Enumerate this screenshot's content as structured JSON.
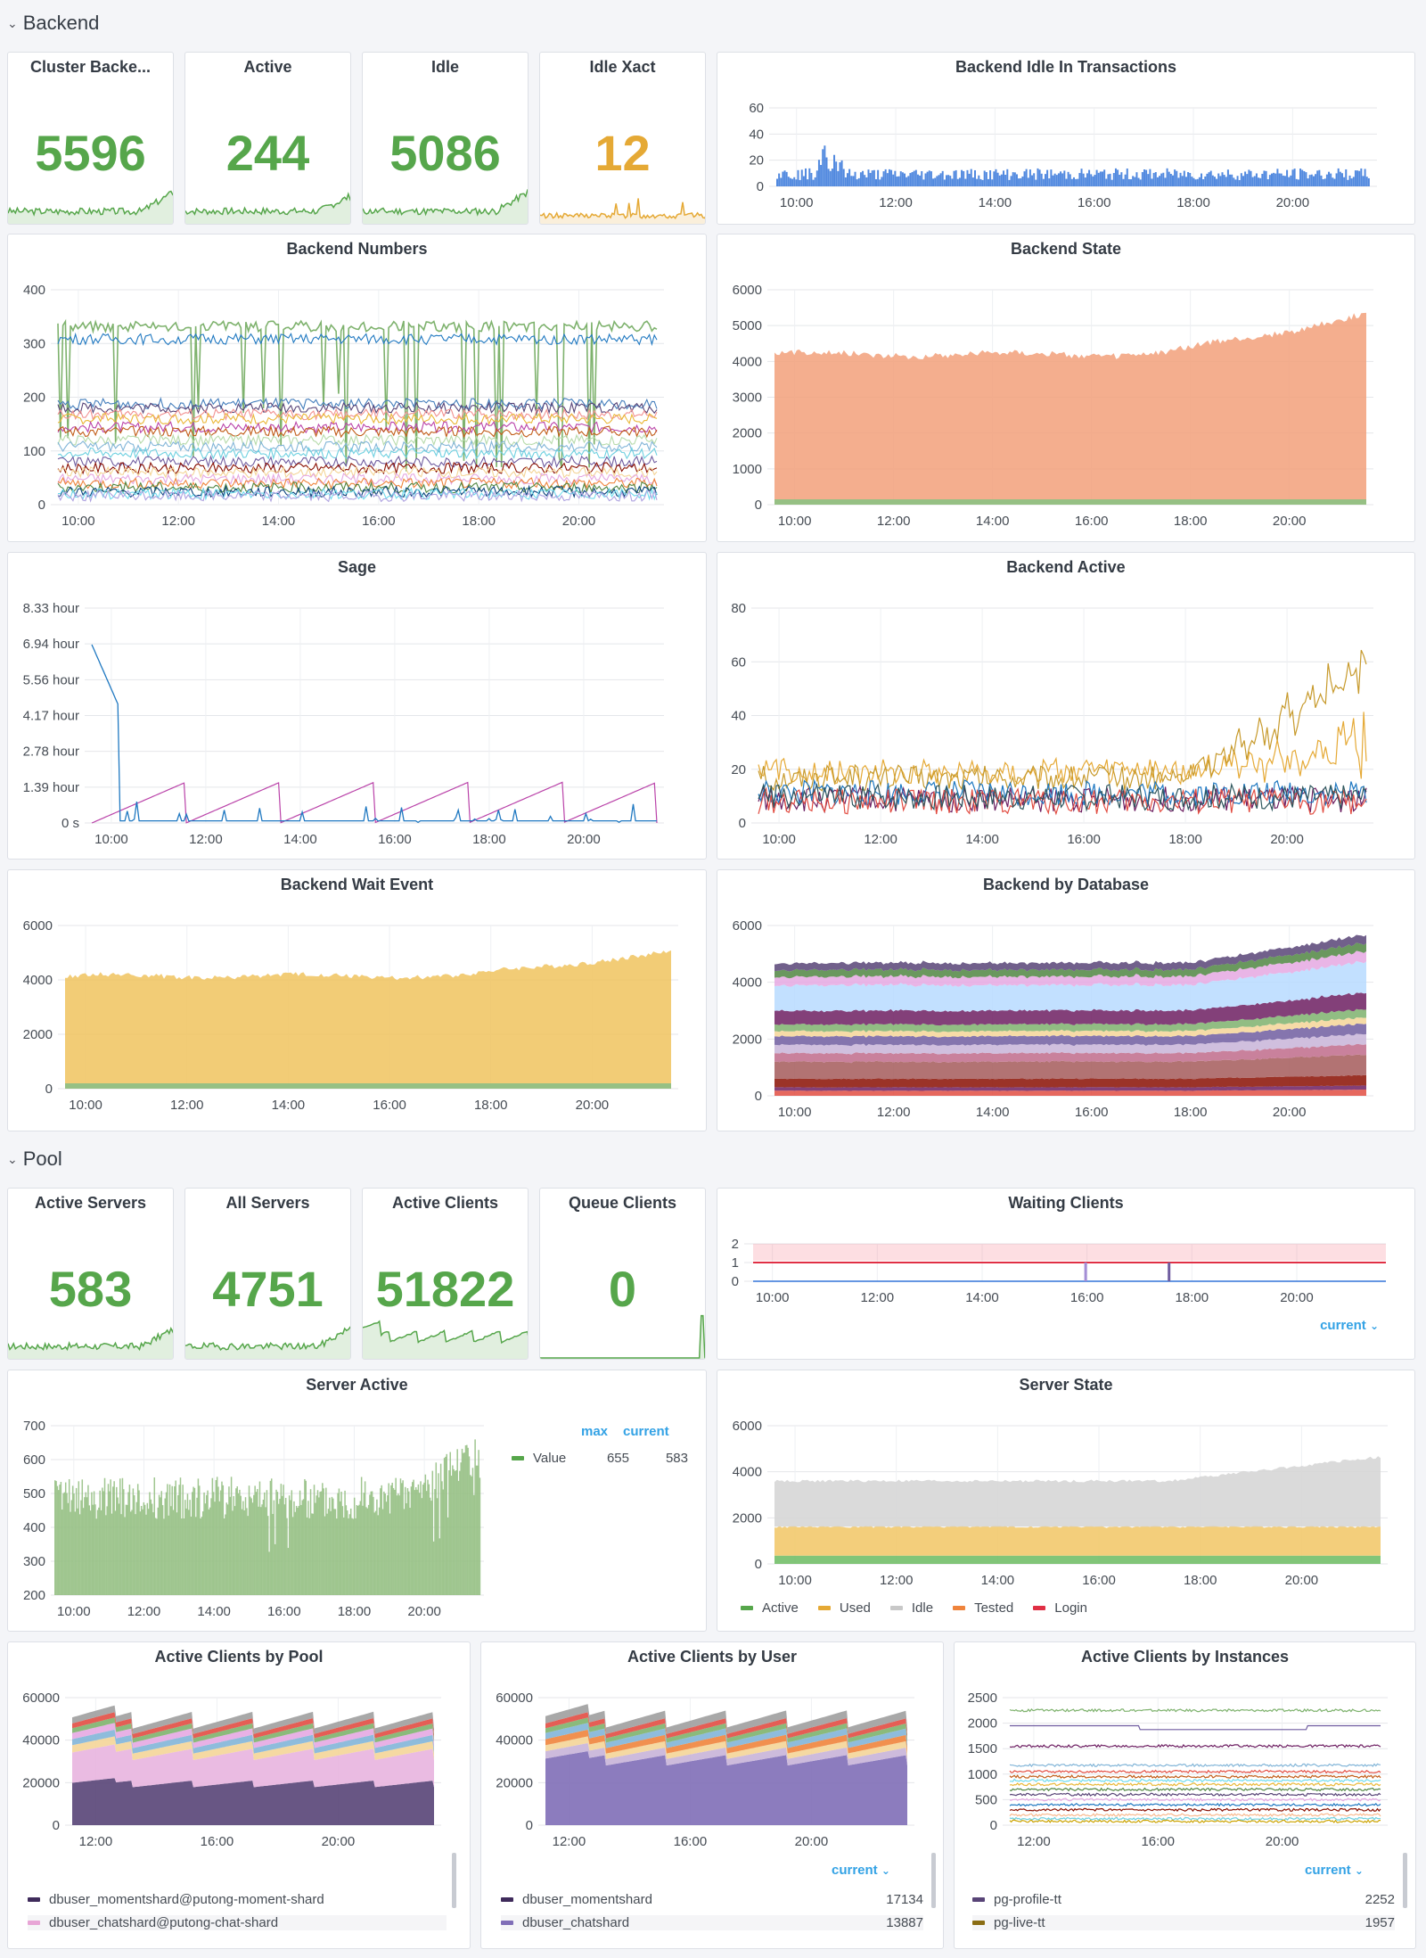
{
  "sections": {
    "backend": "Backend",
    "pool": "Pool"
  },
  "colors": {
    "green": "#56a64b",
    "orange": "#e5a935",
    "blue": "#3274d9",
    "salmon": "#f2a07a",
    "yellow": "#f0c35e",
    "sage_green": "#96c084",
    "grey_idle": "#d4d4d4",
    "accent_link": "#33a2e5"
  },
  "stats": {
    "cluster_backends": {
      "title": "Cluster Backe...",
      "value": "5596"
    },
    "active": {
      "title": "Active",
      "value": "244"
    },
    "idle": {
      "title": "Idle",
      "value": "5086"
    },
    "idle_xact": {
      "title": "Idle Xact",
      "value": "12"
    },
    "active_servers": {
      "title": "Active Servers",
      "value": "583"
    },
    "all_servers": {
      "title": "All Servers",
      "value": "4751"
    },
    "active_clients": {
      "title": "Active Clients",
      "value": "51822"
    },
    "queue_clients": {
      "title": "Queue Clients",
      "value": "0"
    }
  },
  "time_ticks": [
    "10:00",
    "12:00",
    "14:00",
    "16:00",
    "18:00",
    "20:00"
  ],
  "time_ticks_short": [
    "12:00",
    "16:00",
    "20:00"
  ],
  "panels": {
    "idle_in_tx": {
      "title": "Backend Idle In Transactions",
      "y_ticks": [
        "60",
        "40",
        "20",
        "0"
      ]
    },
    "backend_numbers": {
      "title": "Backend Numbers",
      "y_ticks": [
        "400",
        "300",
        "200",
        "100",
        "0"
      ]
    },
    "backend_state": {
      "title": "Backend State",
      "y_ticks": [
        "6000",
        "5000",
        "4000",
        "3000",
        "2000",
        "1000",
        "0"
      ]
    },
    "sage": {
      "title": "Sage",
      "y_ticks": [
        "8.33 hour",
        "6.94 hour",
        "5.56 hour",
        "4.17 hour",
        "2.78 hour",
        "1.39 hour",
        "0 s"
      ]
    },
    "backend_active": {
      "title": "Backend Active",
      "y_ticks": [
        "80",
        "60",
        "40",
        "20",
        "0"
      ]
    },
    "wait_event": {
      "title": "Backend Wait Event",
      "y_ticks": [
        "6000",
        "4000",
        "2000",
        "0"
      ]
    },
    "by_database": {
      "title": "Backend by Database",
      "y_ticks": [
        "6000",
        "4000",
        "2000",
        "0"
      ]
    },
    "waiting_clients": {
      "title": "Waiting Clients",
      "y_ticks": [
        "2",
        "1",
        "0"
      ],
      "legend_sort": "current"
    },
    "server_active": {
      "title": "Server Active",
      "y_ticks": [
        "700",
        "600",
        "500",
        "400",
        "300",
        "200"
      ],
      "legend_headers": [
        "max",
        "current"
      ],
      "legend": [
        {
          "name": "Value",
          "max": "655",
          "current": "583"
        }
      ]
    },
    "server_state": {
      "title": "Server State",
      "y_ticks": [
        "6000",
        "4000",
        "2000",
        "0"
      ],
      "legend": [
        {
          "name": "Active",
          "color": "#56a64b"
        },
        {
          "name": "Used",
          "color": "#e5a935"
        },
        {
          "name": "Idle",
          "color": "#c8c8c8"
        },
        {
          "name": "Tested",
          "color": "#ef843c"
        },
        {
          "name": "Login",
          "color": "#e02f44"
        }
      ]
    },
    "clients_by_pool": {
      "title": "Active Clients by Pool",
      "y_ticks": [
        "60000",
        "40000",
        "20000",
        "0"
      ],
      "legend": [
        {
          "name": "dbuser_momentshard@putong-moment-shard",
          "color": "#3f2b5b"
        },
        {
          "name": "dbuser_chatshard@putong-chat-shard",
          "color": "#e8a5d6"
        }
      ]
    },
    "clients_by_user": {
      "title": "Active Clients by User",
      "y_ticks": [
        "60000",
        "40000",
        "20000",
        "0"
      ],
      "legend_sort": "current",
      "legend": [
        {
          "name": "dbuser_momentshard",
          "value": "17134",
          "color": "#3f2b5b"
        },
        {
          "name": "dbuser_chatshard",
          "value": "13887",
          "color": "#806eb7"
        }
      ]
    },
    "clients_by_instance": {
      "title": "Active Clients by Instances",
      "y_ticks": [
        "2500",
        "2000",
        "1500",
        "1000",
        "500",
        "0"
      ],
      "legend_sort": "current",
      "legend": [
        {
          "name": "pg-profile-tt",
          "value": "2252",
          "color": "#584477"
        },
        {
          "name": "pg-live-tt",
          "value": "1957",
          "color": "#8a6d14"
        }
      ]
    }
  }
}
